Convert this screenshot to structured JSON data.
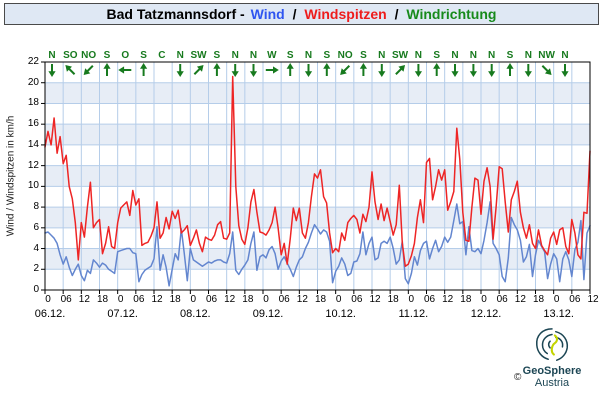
{
  "title": {
    "station": "Bad Tatzmannsdorf -",
    "series_wind": "Wind",
    "separator": "/",
    "series_gust": "Windspitzen",
    "series_dir": "Windrichtung"
  },
  "colors": {
    "title_bg": "#dfe8f4",
    "band": "#e7edf6",
    "grid": "#b5cde9",
    "plot_border": "#000000",
    "wind": "#6386cf",
    "gust": "#ee2525",
    "direction": "#177a1e",
    "logo_navy": "#1c4654",
    "logo_green": "#c3d400"
  },
  "logo": {
    "brand": "GeoSphere",
    "country": "Austria",
    "copyright": "©"
  },
  "chart_data": {
    "type": "line",
    "title": "Bad Tatzmannsdorf - Wind / Windspitzen / Windrichtung",
    "ylabel": "Wind / Windspitzen in km/h",
    "ylim": [
      0,
      22
    ],
    "y_tick_step": 2,
    "y_tick_labels": [
      "0",
      "2",
      "4",
      "6",
      "8",
      "10",
      "12",
      "14",
      "16",
      "18",
      "20",
      "22"
    ],
    "grid": true,
    "x_unit": "hours from 06.12. 00:00",
    "x_hours_total": 180,
    "x_time_tick_step_hours": 6,
    "x_time_tick_labels": [
      "0",
      "06",
      "12",
      "18",
      "0",
      "06",
      "12",
      "18",
      "0",
      "06",
      "12",
      "18",
      "0",
      "06",
      "12",
      "18",
      "0",
      "06",
      "12",
      "18",
      "0",
      "06",
      "12",
      "18",
      "0",
      "06",
      "12",
      "18",
      "0",
      "06",
      "12"
    ],
    "date_labels": [
      "06.12.",
      "07.12.",
      "08.12.",
      "09.12.",
      "10.12.",
      "11.12.",
      "12.12.",
      "13.12."
    ],
    "series": [
      {
        "name": "Wind",
        "color": "#6386cf",
        "values": [
          5.5,
          5.6,
          5.3,
          5.0,
          4.5,
          3.4,
          2.5,
          3.2,
          2.2,
          1.4,
          2.0,
          2.5,
          1.4,
          0.9,
          1.9,
          1.6,
          2.9,
          2.6,
          2.2,
          2.6,
          2.4,
          2.0,
          1.8,
          1.6,
          3.7,
          3.8,
          3.9,
          4.0,
          4.0,
          3.6,
          3.5,
          0.8,
          1.5,
          1.9,
          2.1,
          2.3,
          3.0,
          6.1,
          1.9,
          3.4,
          2.2,
          0.4,
          2.0,
          3.5,
          2.9,
          5.9,
          3.5,
          0.9,
          4.0,
          2.9,
          2.7,
          2.5,
          2.3,
          2.5,
          2.7,
          2.6,
          2.8,
          2.9,
          2.9,
          2.7,
          2.6,
          3.5,
          5.6,
          1.9,
          1.5,
          2.0,
          2.4,
          2.9,
          4.5,
          5.6,
          1.9,
          3.2,
          3.4,
          3.1,
          3.9,
          4.2,
          3.5,
          2.0,
          2.8,
          3.2,
          2.6,
          2.0,
          1.3,
          2.2,
          2.9,
          3.2,
          4.0,
          4.6,
          5.5,
          6.3,
          5.9,
          5.4,
          5.8,
          5.6,
          4.7,
          0.7,
          1.8,
          2.3,
          3.1,
          2.5,
          1.4,
          1.6,
          2.7,
          2.8,
          3.5,
          5.6,
          3.4,
          4.5,
          5.1,
          2.9,
          3.1,
          4.5,
          4.7,
          4.5,
          5.1,
          4.0,
          2.5,
          2.9,
          4.7,
          1.1,
          0.6,
          1.6,
          3.2,
          2.4,
          3.8,
          4.5,
          4.7,
          3.0,
          4.0,
          4.8,
          3.7,
          4.2,
          5.1,
          4.6,
          5.1,
          6.7,
          8.3,
          6.4,
          6.6,
          3.4,
          6.1,
          3.8,
          3.7,
          4.0,
          3.5,
          4.8,
          6.5,
          8.5,
          4.5,
          4.0,
          3.4,
          1.3,
          0.8,
          3.1,
          7.0,
          6.3,
          5.8,
          4.8,
          2.7,
          3.2,
          4.4,
          1.3,
          3.4,
          4.8,
          4.2,
          3.7,
          1.1,
          2.5,
          3.5,
          3.0,
          0.8,
          3.0,
          3.7,
          2.9,
          1.3,
          3.9,
          4.6,
          6.7,
          1.0,
          5.5,
          6.2
        ]
      },
      {
        "name": "Windspitzen",
        "color": "#ee2525",
        "values": [
          13.8,
          15.3,
          14.0,
          16.6,
          13.2,
          14.8,
          12.2,
          13.0,
          10.0,
          8.8,
          6.5,
          2.9,
          6.5,
          5.1,
          8.0,
          10.4,
          6.0,
          6.5,
          6.8,
          3.5,
          4.5,
          6.1,
          4.2,
          4.0,
          6.5,
          7.9,
          8.2,
          8.5,
          7.2,
          9.6,
          8.2,
          8.8,
          4.3,
          4.5,
          4.6,
          5.2,
          6.0,
          8.5,
          5.0,
          5.5,
          7.0,
          5.9,
          7.6,
          6.9,
          7.7,
          5.5,
          5.8,
          6.2,
          4.3,
          5.0,
          5.8,
          4.5,
          3.7,
          5.1,
          4.9,
          4.8,
          5.3,
          6.3,
          6.6,
          5.0,
          4.9,
          5.5,
          20.6,
          10.0,
          6.2,
          4.9,
          4.4,
          6.0,
          8.5,
          9.7,
          7.5,
          5.6,
          5.5,
          5.3,
          5.8,
          6.5,
          8.0,
          6.0,
          3.4,
          4.5,
          2.5,
          5.0,
          7.9,
          6.7,
          7.9,
          5.5,
          5.0,
          6.5,
          9.0,
          11.2,
          10.8,
          11.6,
          9.0,
          8.4,
          5.5,
          3.6,
          4.0,
          3.7,
          5.5,
          4.8,
          6.5,
          6.9,
          7.2,
          6.8,
          5.5,
          7.3,
          6.6,
          8.0,
          11.4,
          8.5,
          6.8,
          8.3,
          6.7,
          7.9,
          6.6,
          5.3,
          6.3,
          10.1,
          4.5,
          2.3,
          2.5,
          3.3,
          4.5,
          7.0,
          8.7,
          6.5,
          12.3,
          12.7,
          8.7,
          10.0,
          11.6,
          10.6,
          11.6,
          7.7,
          8.5,
          9.5,
          15.6,
          12.6,
          7.5,
          4.8,
          4.7,
          8.0,
          10.8,
          10.6,
          7.3,
          10.5,
          11.8,
          10.0,
          4.9,
          8.0,
          11.9,
          11.7,
          8.5,
          5.6,
          8.7,
          9.5,
          10.5,
          7.5,
          6.0,
          5.0,
          6.3,
          4.5,
          4.0,
          5.8,
          4.3,
          3.8,
          3.4,
          5.0,
          5.6,
          4.4,
          5.8,
          6.0,
          4.2,
          3.5,
          6.8,
          5.5,
          3.4,
          3.0,
          7.5,
          7.4,
          13.4
        ]
      }
    ],
    "wind_directions": [
      {
        "label": "N",
        "deg": 0
      },
      {
        "label": "SO",
        "deg": 135
      },
      {
        "label": "NO",
        "deg": 45
      },
      {
        "label": "S",
        "deg": 180
      },
      {
        "label": "O",
        "deg": 90
      },
      {
        "label": "S",
        "deg": 180
      },
      {
        "label": "C",
        "deg": null
      },
      {
        "label": "N",
        "deg": 0
      },
      {
        "label": "SW",
        "deg": 225
      },
      {
        "label": "S",
        "deg": 180
      },
      {
        "label": "N",
        "deg": 0
      },
      {
        "label": "N",
        "deg": 0
      },
      {
        "label": "W",
        "deg": 270
      },
      {
        "label": "S",
        "deg": 180
      },
      {
        "label": "N",
        "deg": 0
      },
      {
        "label": "S",
        "deg": 180
      },
      {
        "label": "NO",
        "deg": 45
      },
      {
        "label": "S",
        "deg": 180
      },
      {
        "label": "N",
        "deg": 0
      },
      {
        "label": "SW",
        "deg": 225
      },
      {
        "label": "N",
        "deg": 0
      },
      {
        "label": "S",
        "deg": 180
      },
      {
        "label": "N",
        "deg": 0
      },
      {
        "label": "N",
        "deg": 0
      },
      {
        "label": "N",
        "deg": 0
      },
      {
        "label": "S",
        "deg": 180
      },
      {
        "label": "N",
        "deg": 0
      },
      {
        "label": "NW",
        "deg": 315
      },
      {
        "label": "N",
        "deg": 0
      }
    ]
  }
}
